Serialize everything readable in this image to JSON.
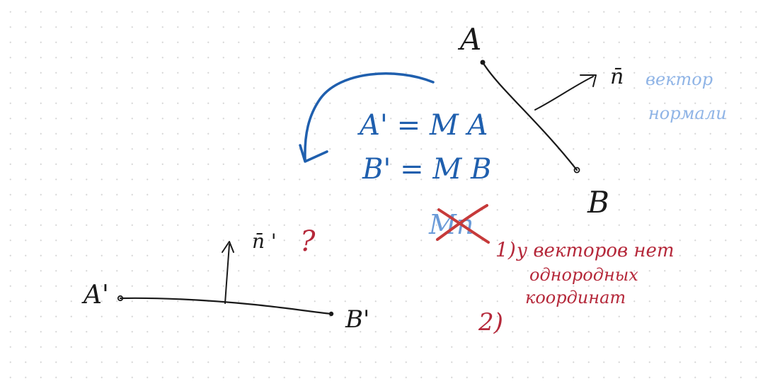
{
  "colors": {
    "black_ink": "#1a1a1a",
    "blue_ink": "#1f5fae",
    "light_blue_ink": "#8fb4e6",
    "red_ink": "#b5283a",
    "cross_red": "#c63a3a",
    "dot_grid": "#d6d6d6"
  },
  "top_segment": {
    "point_a": "A",
    "point_b": "B",
    "normal_label": "n̄",
    "note_line1": "вектор",
    "note_line2": "нормали"
  },
  "blue_equations": {
    "eq1": "A' = M A",
    "eq2": "B' = M B"
  },
  "crossed_out": "Mn",
  "bottom_segment": {
    "point_a": "A'",
    "point_b": "B'",
    "normal_label": "n̄ '",
    "question": "?"
  },
  "red_notes": {
    "item1_number": "1)",
    "item1_line1": "у векторов нет",
    "item1_line2": "однородных",
    "item1_line3": "координат",
    "item2_number": "2)"
  }
}
